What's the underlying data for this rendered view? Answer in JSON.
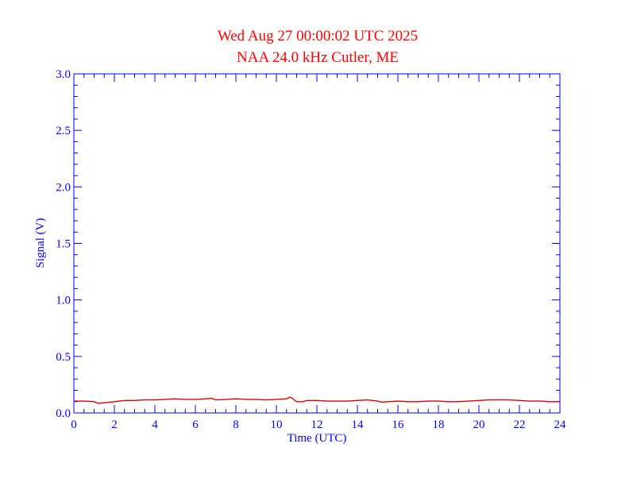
{
  "colors": {
    "title": "#ff0000",
    "axes": "#0000ff",
    "series": "#e00000",
    "background": "#ffffff"
  },
  "chart_data": {
    "type": "line",
    "title": "Wed Aug 27 00:00:02 UTC 2025",
    "subtitle": "NAA 24.0 kHz Cutler, ME",
    "xlabel": "Time (UTC)",
    "ylabel": "Signal (V)",
    "xlim": [
      0,
      24
    ],
    "ylim": [
      0,
      3.0
    ],
    "x_ticks": [
      "0",
      "2",
      "4",
      "6",
      "8",
      "10",
      "12",
      "14",
      "16",
      "18",
      "20",
      "22",
      "24"
    ],
    "y_ticks": [
      "0.0",
      "0.5",
      "1.0",
      "1.5",
      "2.0",
      "2.5",
      "3.0"
    ],
    "x_minor_step": 0.5,
    "y_minor_step": 0.1,
    "grid": false,
    "series": [
      {
        "x": [
          0,
          0.5,
          1.0,
          1.2,
          1.5,
          2.0,
          2.5,
          3.0,
          3.5,
          4.0,
          4.5,
          5.0,
          5.5,
          6.0,
          6.5,
          6.8,
          7.0,
          7.5,
          8.0,
          8.5,
          9.0,
          9.5,
          10.0,
          10.5,
          10.7,
          11.0,
          11.3,
          11.5,
          12.0,
          12.5,
          13.0,
          13.5,
          14.0,
          14.5,
          15.0,
          15.2,
          15.5,
          16.0,
          16.5,
          17.0,
          17.5,
          18.0,
          18.5,
          19.0,
          19.5,
          20.0,
          20.5,
          21.0,
          21.5,
          22.0,
          22.5,
          23.0,
          23.5,
          24.0
        ],
        "y": [
          0.105,
          0.105,
          0.1,
          0.085,
          0.09,
          0.1,
          0.11,
          0.11,
          0.115,
          0.115,
          0.12,
          0.125,
          0.12,
          0.12,
          0.125,
          0.13,
          0.115,
          0.12,
          0.125,
          0.12,
          0.12,
          0.115,
          0.12,
          0.125,
          0.14,
          0.1,
          0.1,
          0.11,
          0.11,
          0.105,
          0.105,
          0.105,
          0.11,
          0.115,
          0.105,
          0.095,
          0.1,
          0.105,
          0.1,
          0.1,
          0.105,
          0.105,
          0.1,
          0.1,
          0.105,
          0.11,
          0.115,
          0.115,
          0.115,
          0.11,
          0.105,
          0.105,
          0.1,
          0.1
        ]
      }
    ]
  }
}
